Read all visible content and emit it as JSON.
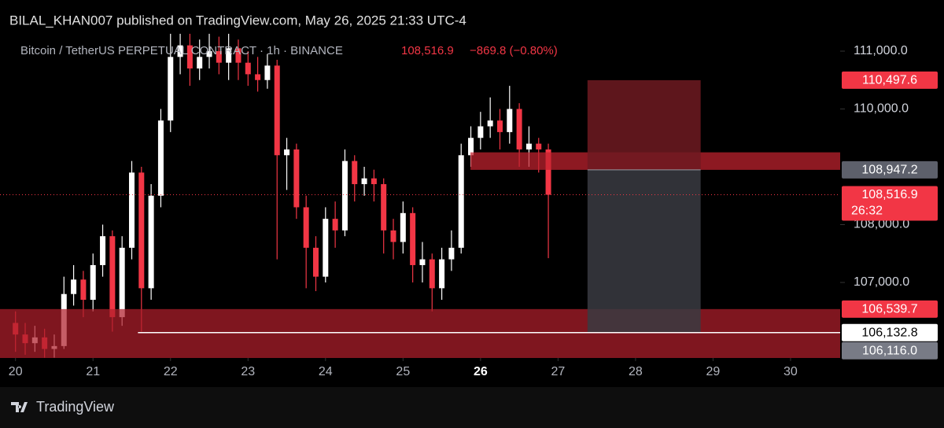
{
  "header": {
    "text": "BILAL_KHAN007 published on TradingView.com, May 26, 2025 21:33 UTC-4"
  },
  "footer": {
    "brand": "TradingView"
  },
  "chart_data": {
    "type": "candlestick",
    "title": "Bitcoin / TetherUS PERPETUAL CONTRACT · 1h · BINANCE",
    "last_price": "108,516.9",
    "change": "−869.8 (−0.80%)",
    "x": [
      20.0,
      20.125,
      20.25,
      20.375,
      20.5,
      20.625,
      20.75,
      20.875,
      21.0,
      21.125,
      21.25,
      21.375,
      21.5,
      21.625,
      21.75,
      21.875,
      22.0,
      22.125,
      22.25,
      22.375,
      22.5,
      22.625,
      22.75,
      22.875,
      23.0,
      23.125,
      23.25,
      23.375,
      23.5,
      23.625,
      23.75,
      23.875,
      24.0,
      24.125,
      24.25,
      24.375,
      24.5,
      24.625,
      24.75,
      24.875,
      25.0,
      25.125,
      25.25,
      25.375,
      25.5,
      25.625,
      25.75,
      25.875,
      26.0,
      26.125,
      26.25,
      26.375,
      26.5,
      26.625,
      26.75,
      26.875
    ],
    "open": [
      106300,
      106100,
      105950,
      106050,
      105850,
      105900,
      106800,
      107050,
      106700,
      107300,
      107800,
      106400,
      107600,
      108900,
      106900,
      108500,
      109800,
      110900,
      111100,
      110700,
      110900,
      111000,
      110800,
      111050,
      110800,
      110600,
      110500,
      110750,
      109200,
      109300,
      108300,
      107600,
      107100,
      108100,
      107900,
      109100,
      108700,
      108800,
      108700,
      107900,
      107700,
      108200,
      107300,
      107400,
      106900,
      107400,
      107600,
      109200,
      109500,
      109700,
      109800,
      109600,
      110000,
      109300,
      109400,
      109300
    ],
    "high": [
      106500,
      106300,
      106250,
      106200,
      106100,
      107100,
      107300,
      107200,
      107500,
      108000,
      107900,
      107800,
      109100,
      109000,
      108700,
      110000,
      111300,
      111300,
      111300,
      111200,
      111300,
      111250,
      111300,
      111200,
      111000,
      110900,
      110950,
      110850,
      109500,
      109400,
      108500,
      107800,
      108300,
      108400,
      109300,
      109200,
      109000,
      108950,
      108800,
      108100,
      108400,
      108300,
      107700,
      107500,
      107600,
      107900,
      109400,
      109700,
      109950,
      110200,
      110000,
      110400,
      110100,
      109700,
      109500,
      109400
    ],
    "low": [
      105800,
      105750,
      105800,
      105700,
      105700,
      105850,
      106600,
      106400,
      106500,
      107100,
      106150,
      106250,
      107400,
      106150,
      106700,
      108300,
      109600,
      110600,
      110400,
      110500,
      110700,
      110600,
      110500,
      110500,
      110400,
      110300,
      110350,
      107400,
      108600,
      108100,
      106900,
      106850,
      107000,
      107600,
      107800,
      108400,
      108500,
      108400,
      107500,
      107400,
      107500,
      107000,
      107000,
      106500,
      106700,
      107200,
      107500,
      109000,
      109300,
      109500,
      109300,
      109400,
      109000,
      109000,
      108900,
      107420
    ],
    "close": [
      106100,
      105950,
      106050,
      105850,
      105900,
      106800,
      107050,
      106700,
      107300,
      107800,
      106400,
      107600,
      108900,
      106900,
      108500,
      109800,
      110900,
      111100,
      110700,
      110900,
      111000,
      110800,
      111050,
      110800,
      110600,
      110500,
      110750,
      109200,
      109300,
      108300,
      107600,
      107100,
      108100,
      107900,
      109100,
      108700,
      108800,
      108700,
      107900,
      107700,
      108200,
      107300,
      107400,
      106900,
      107400,
      107600,
      109200,
      109500,
      109700,
      109800,
      109600,
      110000,
      109300,
      109400,
      109300,
      108516.9
    ],
    "up_color": "#ffffff",
    "down_color": "#f23645",
    "xlim": [
      19.8,
      30.64
    ],
    "xticks": [
      20,
      21,
      22,
      23,
      24,
      25,
      26,
      27,
      28,
      29,
      30
    ],
    "highlight_xtick": 26,
    "ylim": [
      105694,
      111340
    ],
    "yticks": [
      {
        "value": 107000,
        "label": "107,000.0"
      },
      {
        "value": 108000,
        "label": "108,000.0"
      },
      {
        "value": 110000,
        "label": "110,000.0"
      },
      {
        "value": 111000,
        "label": "111,000.0"
      }
    ],
    "zones": [
      {
        "x0": 19.8,
        "x1": 30.64,
        "top": 106539.7,
        "bottom": 105694,
        "color": "#b01f2b"
      },
      {
        "x0": 25.87,
        "x1": 30.64,
        "top": 109250,
        "bottom": 108947.2,
        "color": "#c4222f"
      }
    ],
    "position": {
      "x0": 27.38,
      "x1": 28.84,
      "entry": 108947.2,
      "stop": 110497.6,
      "target": 106132.8,
      "stop_color": "#6e1a21",
      "target_color": "#3a3b42"
    },
    "target_line": {
      "x0": 21.58,
      "value": 106132.8,
      "color": "#ffffff"
    },
    "current_line_color": "#f23645",
    "price_labels": [
      {
        "value": 110497.6,
        "label": "110,497.6",
        "color": "#f23645"
      },
      {
        "value": 108947.2,
        "label": "108,947.2",
        "color": "#5d606b"
      },
      {
        "value": 108516.9,
        "label": "108,516.9",
        "color": "#f23645",
        "countdown": "26:32"
      },
      {
        "value": 106539.7,
        "label": "106,539.7",
        "color": "#f23645"
      },
      {
        "value": 106132.8,
        "label": "106,132.8",
        "color": "#ffffff"
      },
      {
        "value": 106116.0,
        "label": "106,116.0",
        "color": "#787b86"
      }
    ]
  }
}
